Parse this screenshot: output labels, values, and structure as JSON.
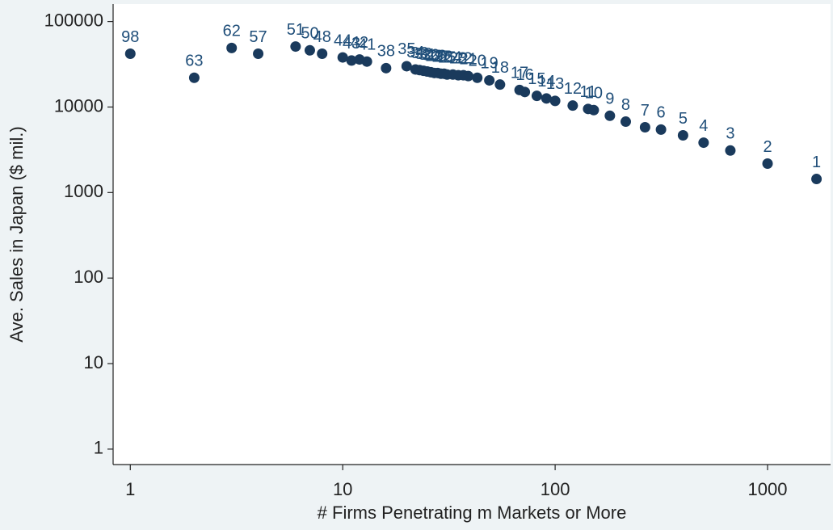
{
  "chart_data": {
    "type": "scatter",
    "x_label": "# Firms Penetrating m Markets or More",
    "y_label": "Ave. Sales in Japan ($ mil.)",
    "x_log": true,
    "y_log": true,
    "xlim": [
      0.83,
      1980
    ],
    "ylim": [
      0.66,
      160000
    ],
    "xticks": [
      1,
      10,
      100,
      1000
    ],
    "yticks": [
      1,
      10,
      100,
      1000,
      10000,
      100000
    ],
    "color": "#1a3a5c",
    "label_color": "#1f4e79",
    "point_labels": [
      "98",
      "63",
      "62",
      "57",
      "51",
      "50",
      "48",
      "44",
      "43",
      "42",
      "41",
      "38",
      "35",
      "34",
      "33",
      "32",
      "31",
      "30",
      "29",
      "28",
      "27",
      "26",
      "25",
      "24",
      "23",
      "22",
      "21",
      "20",
      "19",
      "18",
      "17",
      "16",
      "15",
      "14",
      "13",
      "12",
      "11",
      "10",
      "9",
      "8",
      "7",
      "6",
      "5",
      "4",
      "3",
      "2",
      "1"
    ],
    "x": [
      1,
      2,
      3,
      4,
      6,
      7,
      8,
      10,
      11,
      12,
      13,
      16,
      20,
      22,
      23,
      24,
      25,
      26,
      27,
      28,
      29,
      30,
      31,
      33,
      35,
      37,
      39,
      43,
      49,
      55,
      68,
      72,
      82,
      91,
      100,
      121,
      143,
      152,
      181,
      215,
      265,
      315,
      400,
      500,
      668,
      1000,
      1700
    ],
    "y": [
      42000,
      22000,
      49000,
      42000,
      51000,
      46000,
      42000,
      38000,
      35000,
      36000,
      34000,
      28500,
      30000,
      27500,
      27000,
      26500,
      26000,
      25500,
      25000,
      25000,
      24500,
      24500,
      24000,
      24000,
      23500,
      23500,
      23000,
      22000,
      20500,
      18300,
      15800,
      15000,
      13500,
      12600,
      11800,
      10400,
      9500,
      9200,
      7900,
      6750,
      5800,
      5450,
      4670,
      3830,
      3100,
      2180,
      1440
    ]
  }
}
